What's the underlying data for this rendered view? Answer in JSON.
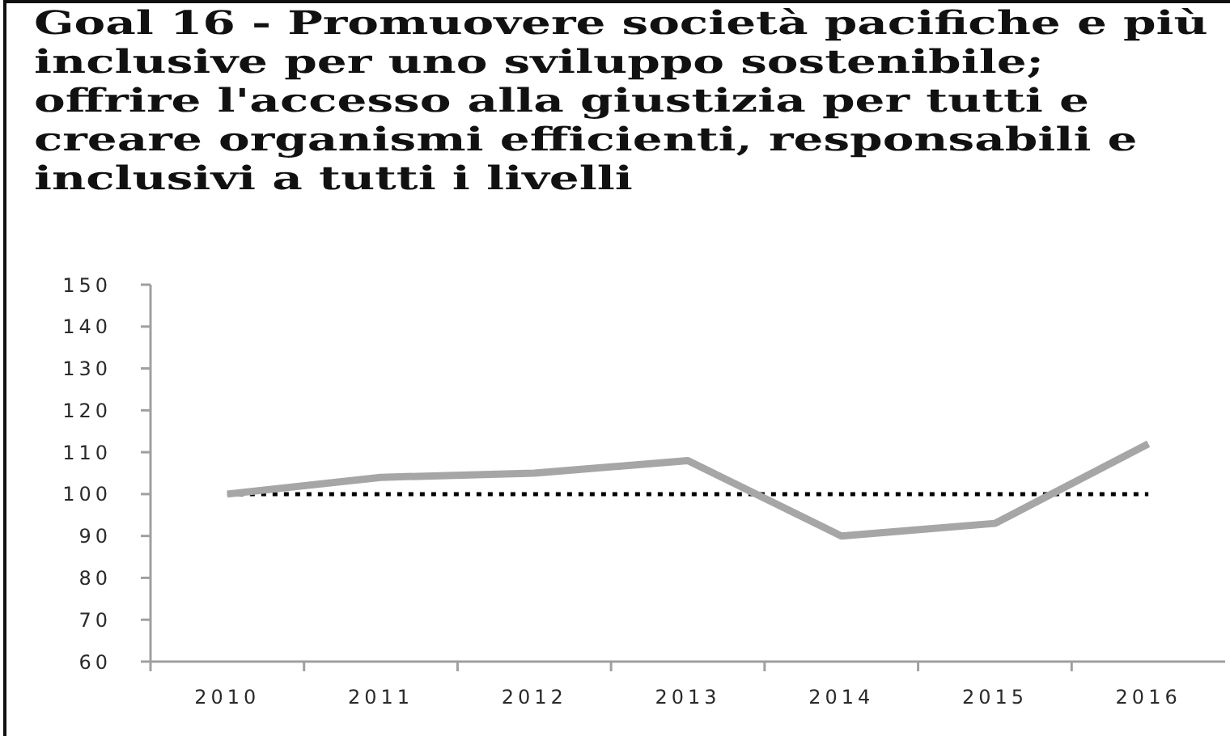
{
  "chart_data": {
    "type": "line",
    "title": "Goal 16 - Promuovere società pacifiche e più inclusive per uno sviluppo sostenibile; offrire l'accesso alla giustizia per tutti e creare organismi efficienti, responsabili e inclusivi a tutti i livelli",
    "categories": [
      "2010",
      "2011",
      "2012",
      "2013",
      "2014",
      "2015",
      "2016"
    ],
    "series": [
      {
        "color": "#a6a6a6",
        "values": [
          100,
          104,
          105,
          108,
          90,
          93,
          112
        ]
      }
    ],
    "ylim": [
      60,
      150
    ],
    "yticks": [
      60,
      70,
      80,
      90,
      100,
      110,
      120,
      130,
      140,
      150
    ],
    "grid": false,
    "marker": "none",
    "line_style": "solid",
    "ref_lines": [
      {
        "axis": "y",
        "value": 100,
        "color": "#000000",
        "line_style": "dotted"
      }
    ]
  }
}
